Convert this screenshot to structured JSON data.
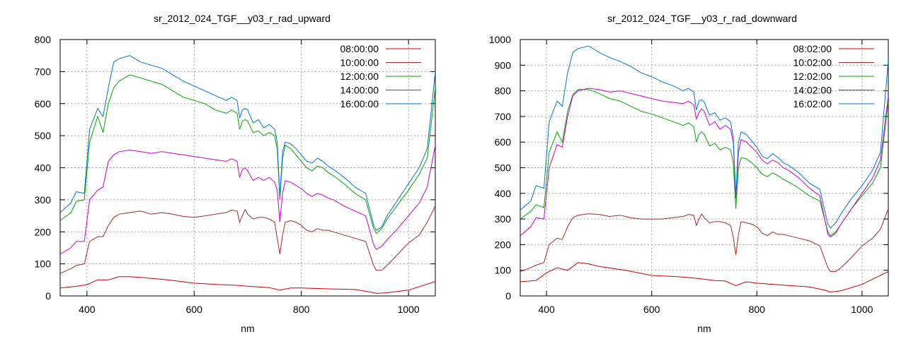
{
  "chart_data": [
    {
      "type": "line",
      "title": "sr_2012_024_TGF__y03_r_rad_upward",
      "xlabel": "nm",
      "ylabel": "",
      "xlim": [
        350,
        1050
      ],
      "ylim": [
        0,
        800
      ],
      "xticks": [
        400,
        600,
        800,
        1000
      ],
      "yticks": [
        0,
        100,
        200,
        300,
        400,
        500,
        600,
        700,
        800
      ],
      "grid": true,
      "legend_position": "top-right",
      "series": [
        {
          "name": "08:00:00",
          "color": "#cc0000",
          "x": [
            350,
            380,
            400,
            420,
            440,
            460,
            480,
            500,
            550,
            600,
            650,
            680,
            700,
            720,
            740,
            760,
            780,
            800,
            850,
            900,
            930,
            940,
            960,
            1000,
            1050
          ],
          "y": [
            25,
            30,
            35,
            50,
            50,
            60,
            60,
            58,
            50,
            40,
            35,
            33,
            30,
            28,
            26,
            18,
            25,
            25,
            22,
            20,
            12,
            8,
            10,
            18,
            45
          ]
        },
        {
          "name": "10:00:00",
          "color": "#a52a2a",
          "x": [
            350,
            370,
            380,
            395,
            405,
            420,
            430,
            440,
            450,
            460,
            480,
            500,
            520,
            540,
            560,
            580,
            600,
            620,
            640,
            660,
            670,
            680,
            685,
            690,
            695,
            700,
            710,
            720,
            730,
            740,
            750,
            755,
            760,
            765,
            770,
            780,
            790,
            800,
            810,
            820,
            830,
            840,
            850,
            860,
            880,
            900,
            920,
            935,
            940,
            950,
            960,
            980,
            1000,
            1020,
            1035,
            1050
          ],
          "y": [
            70,
            85,
            95,
            100,
            170,
            185,
            185,
            220,
            245,
            255,
            260,
            265,
            255,
            260,
            255,
            248,
            245,
            250,
            255,
            260,
            268,
            265,
            230,
            250,
            270,
            255,
            240,
            245,
            245,
            240,
            230,
            180,
            130,
            190,
            230,
            235,
            230,
            220,
            205,
            200,
            210,
            205,
            205,
            200,
            190,
            180,
            170,
            95,
            80,
            80,
            95,
            130,
            165,
            190,
            230,
            280
          ]
        },
        {
          "name": "12:00:00",
          "color": "#00aa00",
          "x": [
            350,
            370,
            380,
            395,
            405,
            420,
            430,
            440,
            450,
            460,
            480,
            500,
            520,
            540,
            560,
            580,
            600,
            620,
            640,
            660,
            670,
            680,
            685,
            690,
            695,
            700,
            710,
            720,
            730,
            740,
            750,
            755,
            760,
            765,
            770,
            780,
            790,
            800,
            810,
            820,
            830,
            840,
            850,
            860,
            880,
            900,
            920,
            935,
            940,
            950,
            960,
            980,
            1000,
            1020,
            1035,
            1050
          ],
          "y": [
            235,
            260,
            295,
            300,
            480,
            560,
            510,
            600,
            650,
            670,
            690,
            680,
            670,
            660,
            640,
            620,
            610,
            600,
            580,
            570,
            580,
            570,
            520,
            545,
            550,
            545,
            510,
            515,
            500,
            510,
            500,
            460,
            300,
            430,
            470,
            460,
            440,
            420,
            400,
            390,
            405,
            400,
            385,
            375,
            350,
            320,
            300,
            210,
            195,
            210,
            240,
            285,
            330,
            380,
            430,
            650
          ]
        },
        {
          "name": "14:00:00",
          "color": "#cc00cc",
          "x": [
            350,
            370,
            380,
            395,
            405,
            420,
            430,
            440,
            450,
            460,
            480,
            500,
            520,
            540,
            560,
            580,
            600,
            620,
            640,
            660,
            670,
            680,
            685,
            690,
            695,
            700,
            710,
            720,
            730,
            740,
            750,
            755,
            760,
            765,
            770,
            780,
            790,
            800,
            810,
            820,
            830,
            840,
            850,
            860,
            880,
            900,
            920,
            935,
            940,
            950,
            960,
            980,
            1000,
            1020,
            1035,
            1050
          ],
          "y": [
            130,
            150,
            170,
            170,
            300,
            330,
            340,
            420,
            440,
            450,
            455,
            450,
            445,
            450,
            445,
            440,
            435,
            430,
            425,
            420,
            428,
            420,
            370,
            395,
            400,
            390,
            360,
            370,
            360,
            370,
            355,
            330,
            230,
            320,
            360,
            355,
            345,
            335,
            320,
            310,
            320,
            315,
            305,
            300,
            280,
            265,
            250,
            160,
            145,
            155,
            175,
            210,
            250,
            290,
            340,
            470
          ]
        },
        {
          "name": "16:00:00",
          "color": "#0077cc",
          "x": [
            350,
            370,
            380,
            395,
            405,
            420,
            430,
            440,
            450,
            460,
            480,
            500,
            520,
            540,
            560,
            580,
            600,
            620,
            640,
            660,
            670,
            680,
            685,
            690,
            695,
            700,
            710,
            720,
            730,
            740,
            750,
            755,
            760,
            765,
            770,
            780,
            790,
            800,
            810,
            820,
            830,
            840,
            850,
            860,
            880,
            900,
            920,
            935,
            940,
            950,
            960,
            980,
            1000,
            1020,
            1035,
            1050
          ],
          "y": [
            260,
            290,
            325,
            320,
            520,
            585,
            560,
            650,
            730,
            740,
            750,
            730,
            720,
            710,
            690,
            670,
            655,
            640,
            625,
            610,
            620,
            610,
            555,
            580,
            585,
            580,
            540,
            550,
            525,
            535,
            520,
            480,
            310,
            450,
            480,
            475,
            460,
            440,
            420,
            415,
            430,
            420,
            405,
            395,
            370,
            340,
            320,
            220,
            205,
            215,
            250,
            300,
            350,
            400,
            460,
            700
          ]
        }
      ]
    },
    {
      "type": "line",
      "title": "sr_2012_024_TGF__y03_r_rad_downward",
      "xlabel": "nm",
      "ylabel": "",
      "xlim": [
        350,
        1050
      ],
      "ylim": [
        0,
        1000
      ],
      "xticks": [
        400,
        600,
        800,
        1000
      ],
      "yticks": [
        0,
        100,
        200,
        300,
        400,
        500,
        600,
        700,
        800,
        900,
        1000
      ],
      "grid": true,
      "legend_position": "top-right",
      "series": [
        {
          "name": "08:02:00",
          "color": "#cc0000",
          "x": [
            350,
            380,
            400,
            420,
            440,
            460,
            480,
            500,
            550,
            600,
            650,
            680,
            700,
            720,
            740,
            760,
            780,
            800,
            850,
            900,
            930,
            940,
            960,
            1000,
            1050
          ],
          "y": [
            55,
            60,
            90,
            110,
            100,
            130,
            125,
            115,
            100,
            80,
            75,
            70,
            65,
            60,
            58,
            40,
            55,
            50,
            42,
            35,
            22,
            15,
            20,
            45,
            95
          ]
        },
        {
          "name": "10:02:00",
          "color": "#a52a2a",
          "x": [
            350,
            370,
            380,
            395,
            405,
            420,
            430,
            440,
            450,
            460,
            480,
            500,
            520,
            540,
            560,
            580,
            600,
            620,
            640,
            660,
            670,
            680,
            685,
            690,
            695,
            700,
            710,
            720,
            730,
            740,
            750,
            755,
            760,
            765,
            770,
            780,
            790,
            800,
            810,
            820,
            830,
            840,
            850,
            860,
            880,
            900,
            920,
            935,
            940,
            950,
            960,
            980,
            1000,
            1020,
            1035,
            1050
          ],
          "y": [
            95,
            110,
            120,
            130,
            200,
            225,
            220,
            270,
            305,
            315,
            320,
            318,
            310,
            315,
            305,
            300,
            300,
            300,
            305,
            310,
            318,
            315,
            275,
            300,
            320,
            305,
            285,
            290,
            290,
            285,
            275,
            230,
            160,
            240,
            290,
            285,
            280,
            270,
            245,
            235,
            250,
            240,
            240,
            235,
            225,
            215,
            195,
            110,
            95,
            95,
            110,
            150,
            195,
            225,
            260,
            340
          ]
        },
        {
          "name": "12:02:00",
          "color": "#00aa00",
          "x": [
            350,
            370,
            380,
            395,
            405,
            420,
            430,
            440,
            450,
            460,
            480,
            500,
            520,
            540,
            560,
            580,
            600,
            620,
            640,
            660,
            670,
            680,
            685,
            690,
            695,
            700,
            710,
            720,
            730,
            740,
            750,
            755,
            760,
            765,
            770,
            780,
            790,
            800,
            810,
            820,
            830,
            840,
            850,
            860,
            880,
            900,
            920,
            935,
            940,
            950,
            960,
            980,
            1000,
            1020,
            1035,
            1050
          ],
          "y": [
            300,
            330,
            355,
            345,
            560,
            640,
            600,
            720,
            785,
            805,
            805,
            790,
            770,
            760,
            740,
            720,
            710,
            695,
            680,
            665,
            675,
            660,
            600,
            630,
            640,
            630,
            585,
            595,
            570,
            580,
            570,
            520,
            340,
            500,
            540,
            535,
            520,
            500,
            475,
            465,
            480,
            470,
            455,
            445,
            420,
            390,
            370,
            250,
            235,
            250,
            280,
            340,
            390,
            440,
            500,
            760
          ]
        },
        {
          "name": "14:02:00",
          "color": "#cc00cc",
          "x": [
            350,
            370,
            380,
            395,
            405,
            420,
            430,
            440,
            450,
            460,
            480,
            500,
            520,
            540,
            560,
            580,
            600,
            620,
            640,
            660,
            670,
            680,
            685,
            690,
            695,
            700,
            710,
            720,
            730,
            740,
            750,
            755,
            760,
            765,
            770,
            780,
            790,
            800,
            810,
            820,
            830,
            840,
            850,
            860,
            880,
            900,
            920,
            935,
            940,
            950,
            960,
            980,
            1000,
            1020,
            1035,
            1050
          ],
          "y": [
            235,
            270,
            305,
            300,
            500,
            590,
            580,
            700,
            780,
            800,
            810,
            805,
            795,
            800,
            790,
            780,
            770,
            760,
            755,
            750,
            760,
            745,
            690,
            715,
            730,
            720,
            665,
            680,
            650,
            665,
            650,
            600,
            380,
            560,
            610,
            600,
            580,
            560,
            530,
            515,
            530,
            520,
            500,
            490,
            460,
            420,
            390,
            240,
            230,
            245,
            280,
            340,
            400,
            460,
            530,
            780
          ]
        },
        {
          "name": "16:02:00",
          "color": "#0077cc",
          "x": [
            350,
            370,
            380,
            395,
            405,
            420,
            430,
            440,
            450,
            460,
            480,
            500,
            520,
            540,
            560,
            580,
            600,
            620,
            640,
            660,
            670,
            680,
            685,
            690,
            695,
            700,
            710,
            720,
            730,
            740,
            750,
            755,
            760,
            765,
            770,
            780,
            790,
            800,
            810,
            820,
            830,
            840,
            850,
            860,
            880,
            900,
            920,
            935,
            940,
            950,
            960,
            980,
            1000,
            1020,
            1035,
            1050
          ],
          "y": [
            335,
            370,
            430,
            420,
            680,
            760,
            740,
            870,
            950,
            965,
            975,
            950,
            930,
            915,
            895,
            870,
            855,
            835,
            820,
            800,
            810,
            795,
            725,
            760,
            765,
            755,
            705,
            715,
            685,
            695,
            680,
            620,
            390,
            600,
            640,
            630,
            605,
            580,
            545,
            535,
            555,
            540,
            520,
            510,
            480,
            440,
            415,
            280,
            265,
            285,
            320,
            380,
            430,
            490,
            560,
            920
          ]
        }
      ]
    }
  ]
}
